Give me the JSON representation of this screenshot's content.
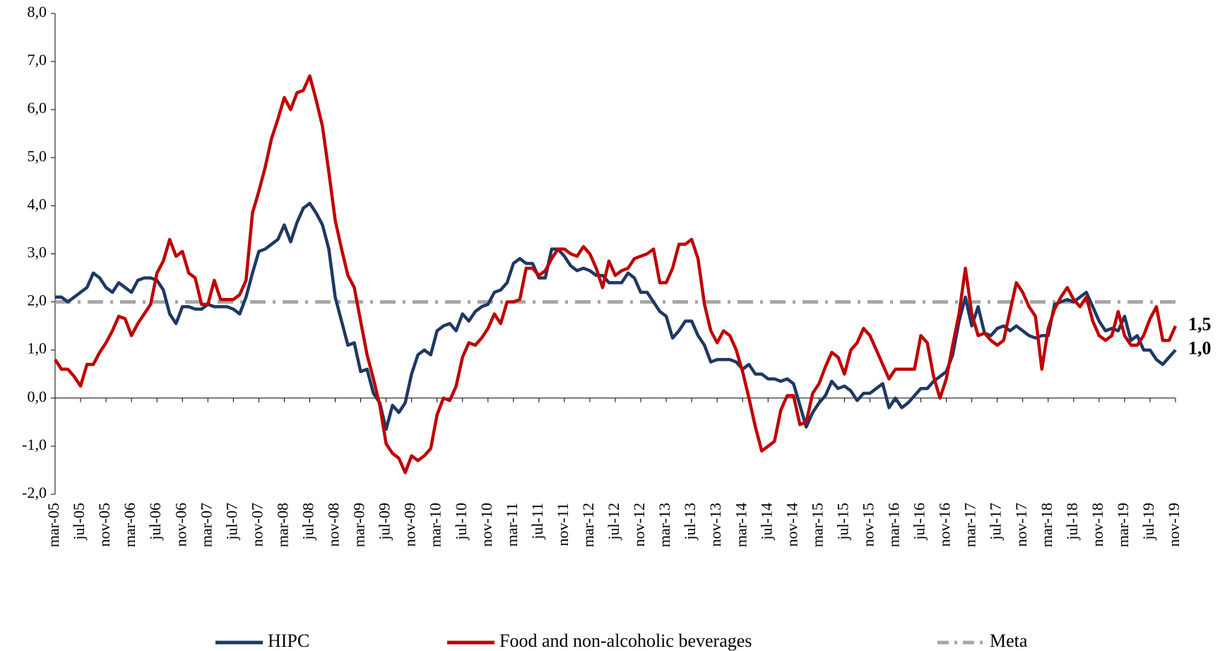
{
  "chart_data": {
    "type": "line",
    "categories": [
      "mar-05",
      null,
      null,
      null,
      "jul-05",
      null,
      null,
      null,
      "nov-05",
      null,
      null,
      null,
      "mar-06",
      null,
      null,
      null,
      "jul-06",
      null,
      null,
      null,
      "nov-06",
      null,
      null,
      null,
      "mar-07",
      null,
      null,
      null,
      "jul-07",
      null,
      null,
      null,
      "nov-07",
      null,
      null,
      null,
      "mar-08",
      null,
      null,
      null,
      "jul-08",
      null,
      null,
      null,
      "nov-08",
      null,
      null,
      null,
      "mar-09",
      null,
      null,
      null,
      "jul-09",
      null,
      null,
      null,
      "nov-09",
      null,
      null,
      null,
      "mar-10",
      null,
      null,
      null,
      "jul-10",
      null,
      null,
      null,
      "nov-10",
      null,
      null,
      null,
      "mar-11",
      null,
      null,
      null,
      "jul-11",
      null,
      null,
      null,
      "nov-11",
      null,
      null,
      null,
      "mar-12",
      null,
      null,
      null,
      "jul-12",
      null,
      null,
      null,
      "nov-12",
      null,
      null,
      null,
      "mar-13",
      null,
      null,
      null,
      "jul-13",
      null,
      null,
      null,
      "nov-13",
      null,
      null,
      null,
      "mar-14",
      null,
      null,
      null,
      "jul-14",
      null,
      null,
      null,
      "nov-14",
      null,
      null,
      null,
      "mar-15",
      null,
      null,
      null,
      "jul-15",
      null,
      null,
      null,
      "nov-15",
      null,
      null,
      null,
      "mar-16",
      null,
      null,
      null,
      "jul-16",
      null,
      null,
      null,
      "nov-16",
      null,
      null,
      null,
      "mar-17",
      null,
      null,
      null,
      "jul-17",
      null,
      null,
      null,
      "nov-17",
      null,
      null,
      null,
      "mar-18",
      null,
      null,
      null,
      "jul-18",
      null,
      null,
      null,
      "nov-18",
      null,
      null,
      null,
      "mar-19",
      null,
      null,
      null,
      "jul-19",
      null,
      null,
      null,
      "nov-19"
    ],
    "series": [
      {
        "name": "HIPC",
        "color": "#1f3864",
        "style": "solid",
        "values": [
          2.1,
          2.1,
          2.0,
          2.1,
          2.2,
          2.3,
          2.6,
          2.5,
          2.3,
          2.2,
          2.4,
          2.3,
          2.2,
          2.45,
          2.5,
          2.5,
          2.45,
          2.25,
          1.75,
          1.55,
          1.9,
          1.9,
          1.85,
          1.85,
          1.95,
          1.9,
          1.9,
          1.9,
          1.85,
          1.75,
          2.1,
          2.6,
          3.05,
          3.1,
          3.2,
          3.3,
          3.6,
          3.25,
          3.65,
          3.95,
          4.05,
          3.85,
          3.6,
          3.1,
          2.1,
          1.6,
          1.1,
          1.15,
          0.55,
          0.6,
          0.1,
          -0.1,
          -0.65,
          -0.15,
          -0.3,
          -0.1,
          0.5,
          0.9,
          1.0,
          0.9,
          1.4,
          1.5,
          1.55,
          1.4,
          1.75,
          1.6,
          1.8,
          1.9,
          1.95,
          2.2,
          2.25,
          2.4,
          2.8,
          2.9,
          2.8,
          2.8,
          2.5,
          2.5,
          3.1,
          3.1,
          2.95,
          2.75,
          2.65,
          2.7,
          2.65,
          2.55,
          2.55,
          2.4,
          2.4,
          2.4,
          2.6,
          2.5,
          2.2,
          2.2,
          2.0,
          1.8,
          1.7,
          1.25,
          1.4,
          1.6,
          1.6,
          1.3,
          1.1,
          0.75,
          0.8,
          0.8,
          0.8,
          0.75,
          0.6,
          0.7,
          0.5,
          0.5,
          0.4,
          0.4,
          0.35,
          0.4,
          0.3,
          -0.15,
          -0.6,
          -0.3,
          -0.1,
          0.05,
          0.35,
          0.2,
          0.25,
          0.15,
          -0.05,
          0.1,
          0.1,
          0.2,
          0.3,
          -0.2,
          0.0,
          -0.2,
          -0.1,
          0.05,
          0.2,
          0.2,
          0.35,
          0.45,
          0.55,
          0.9,
          1.6,
          2.1,
          1.5,
          1.9,
          1.35,
          1.3,
          1.45,
          1.5,
          1.4,
          1.5,
          1.4,
          1.3,
          1.25,
          1.3,
          1.3,
          1.95,
          2.0,
          2.05,
          2.0,
          2.1,
          2.2,
          1.9,
          1.6,
          1.4,
          1.45,
          1.4,
          1.7,
          1.2,
          1.3,
          1.0,
          1.0,
          0.8,
          0.7,
          0.85,
          1.0
        ]
      },
      {
        "name": "Food and non-alcoholic beverages",
        "color": "#c00000",
        "style": "solid",
        "values": [
          0.8,
          0.6,
          0.6,
          0.45,
          0.25,
          0.7,
          0.7,
          0.95,
          1.15,
          1.4,
          1.7,
          1.65,
          1.3,
          1.55,
          1.75,
          1.95,
          2.6,
          2.85,
          3.3,
          2.95,
          3.05,
          2.6,
          2.5,
          1.95,
          1.95,
          2.45,
          2.05,
          2.05,
          2.05,
          2.15,
          2.45,
          3.85,
          4.3,
          4.8,
          5.4,
          5.8,
          6.25,
          6.0,
          6.35,
          6.4,
          6.7,
          6.2,
          5.65,
          4.7,
          3.7,
          3.1,
          2.55,
          2.3,
          1.6,
          0.9,
          0.4,
          -0.15,
          -0.95,
          -1.15,
          -1.25,
          -1.55,
          -1.2,
          -1.3,
          -1.2,
          -1.05,
          -0.35,
          0.0,
          -0.05,
          0.25,
          0.85,
          1.15,
          1.1,
          1.25,
          1.45,
          1.75,
          1.55,
          2.0,
          2.0,
          2.05,
          2.7,
          2.7,
          2.55,
          2.65,
          2.9,
          3.1,
          3.1,
          3.0,
          2.95,
          3.15,
          3.0,
          2.7,
          2.3,
          2.85,
          2.55,
          2.65,
          2.7,
          2.9,
          2.95,
          3.0,
          3.1,
          2.4,
          2.4,
          2.7,
          3.2,
          3.2,
          3.3,
          2.9,
          1.95,
          1.4,
          1.15,
          1.4,
          1.3,
          1.0,
          0.55,
          0.0,
          -0.6,
          -1.1,
          -1.0,
          -0.9,
          -0.25,
          0.05,
          0.05,
          -0.55,
          -0.5,
          0.1,
          0.3,
          0.65,
          0.95,
          0.85,
          0.5,
          1.0,
          1.15,
          1.45,
          1.3,
          1.0,
          0.7,
          0.4,
          0.6,
          0.6,
          0.6,
          0.6,
          1.3,
          1.15,
          0.45,
          0.0,
          0.4,
          1.1,
          1.75,
          2.7,
          1.75,
          1.3,
          1.35,
          1.2,
          1.1,
          1.2,
          1.8,
          2.4,
          2.2,
          1.9,
          1.7,
          0.6,
          1.45,
          1.85,
          2.1,
          2.3,
          2.05,
          1.9,
          2.1,
          1.6,
          1.3,
          1.2,
          1.3,
          1.8,
          1.3,
          1.1,
          1.1,
          1.3,
          1.65,
          1.9,
          1.2,
          1.2,
          1.5
        ]
      },
      {
        "name": "Meta",
        "color": "#a6a6a6",
        "style": "dashdot",
        "values": [
          2,
          2,
          2,
          2,
          2,
          2,
          2,
          2,
          2,
          2,
          2,
          2,
          2,
          2,
          2,
          2,
          2,
          2,
          2,
          2,
          2,
          2,
          2,
          2,
          2,
          2,
          2,
          2,
          2,
          2,
          2,
          2,
          2,
          2,
          2,
          2,
          2,
          2,
          2,
          2,
          2,
          2,
          2,
          2,
          2,
          2,
          2,
          2,
          2,
          2,
          2,
          2,
          2,
          2,
          2,
          2,
          2,
          2,
          2,
          2,
          2,
          2,
          2,
          2,
          2,
          2,
          2,
          2,
          2,
          2,
          2,
          2,
          2,
          2,
          2,
          2,
          2,
          2,
          2,
          2,
          2,
          2,
          2,
          2,
          2,
          2,
          2,
          2,
          2,
          2,
          2,
          2,
          2,
          2,
          2,
          2,
          2,
          2,
          2,
          2,
          2,
          2,
          2,
          2,
          2,
          2,
          2,
          2,
          2,
          2,
          2,
          2,
          2,
          2,
          2,
          2,
          2,
          2,
          2,
          2,
          2,
          2,
          2,
          2,
          2,
          2,
          2,
          2,
          2,
          2,
          2,
          2,
          2,
          2,
          2,
          2,
          2,
          2,
          2,
          2,
          2,
          2,
          2,
          2,
          2,
          2,
          2,
          2,
          2,
          2,
          2,
          2,
          2,
          2,
          2,
          2,
          2,
          2,
          2,
          2,
          2,
          2,
          2,
          2,
          2,
          2,
          2,
          2,
          2,
          2,
          2,
          2,
          2,
          2,
          2,
          2,
          2
        ]
      }
    ],
    "annotations": [
      {
        "label": "1,5",
        "value": 1.5,
        "color": "#c00000"
      },
      {
        "label": "1,0",
        "value": 1.0,
        "color": "#1f3864"
      }
    ],
    "ylim": [
      -2,
      8
    ],
    "yticks": [
      {
        "value": -2,
        "label": "-2,0"
      },
      {
        "value": -1,
        "label": "-1,0"
      },
      {
        "value": 0,
        "label": "0,0"
      },
      {
        "value": 1,
        "label": "1,0"
      },
      {
        "value": 2,
        "label": "2,0"
      },
      {
        "value": 3,
        "label": "3,0"
      },
      {
        "value": 4,
        "label": "4,0"
      },
      {
        "value": 5,
        "label": "5,0"
      },
      {
        "value": 6,
        "label": "6,0"
      },
      {
        "value": 7,
        "label": "7,0"
      },
      {
        "value": 8,
        "label": "8,0"
      }
    ],
    "grid": false,
    "legend": "bottom"
  }
}
